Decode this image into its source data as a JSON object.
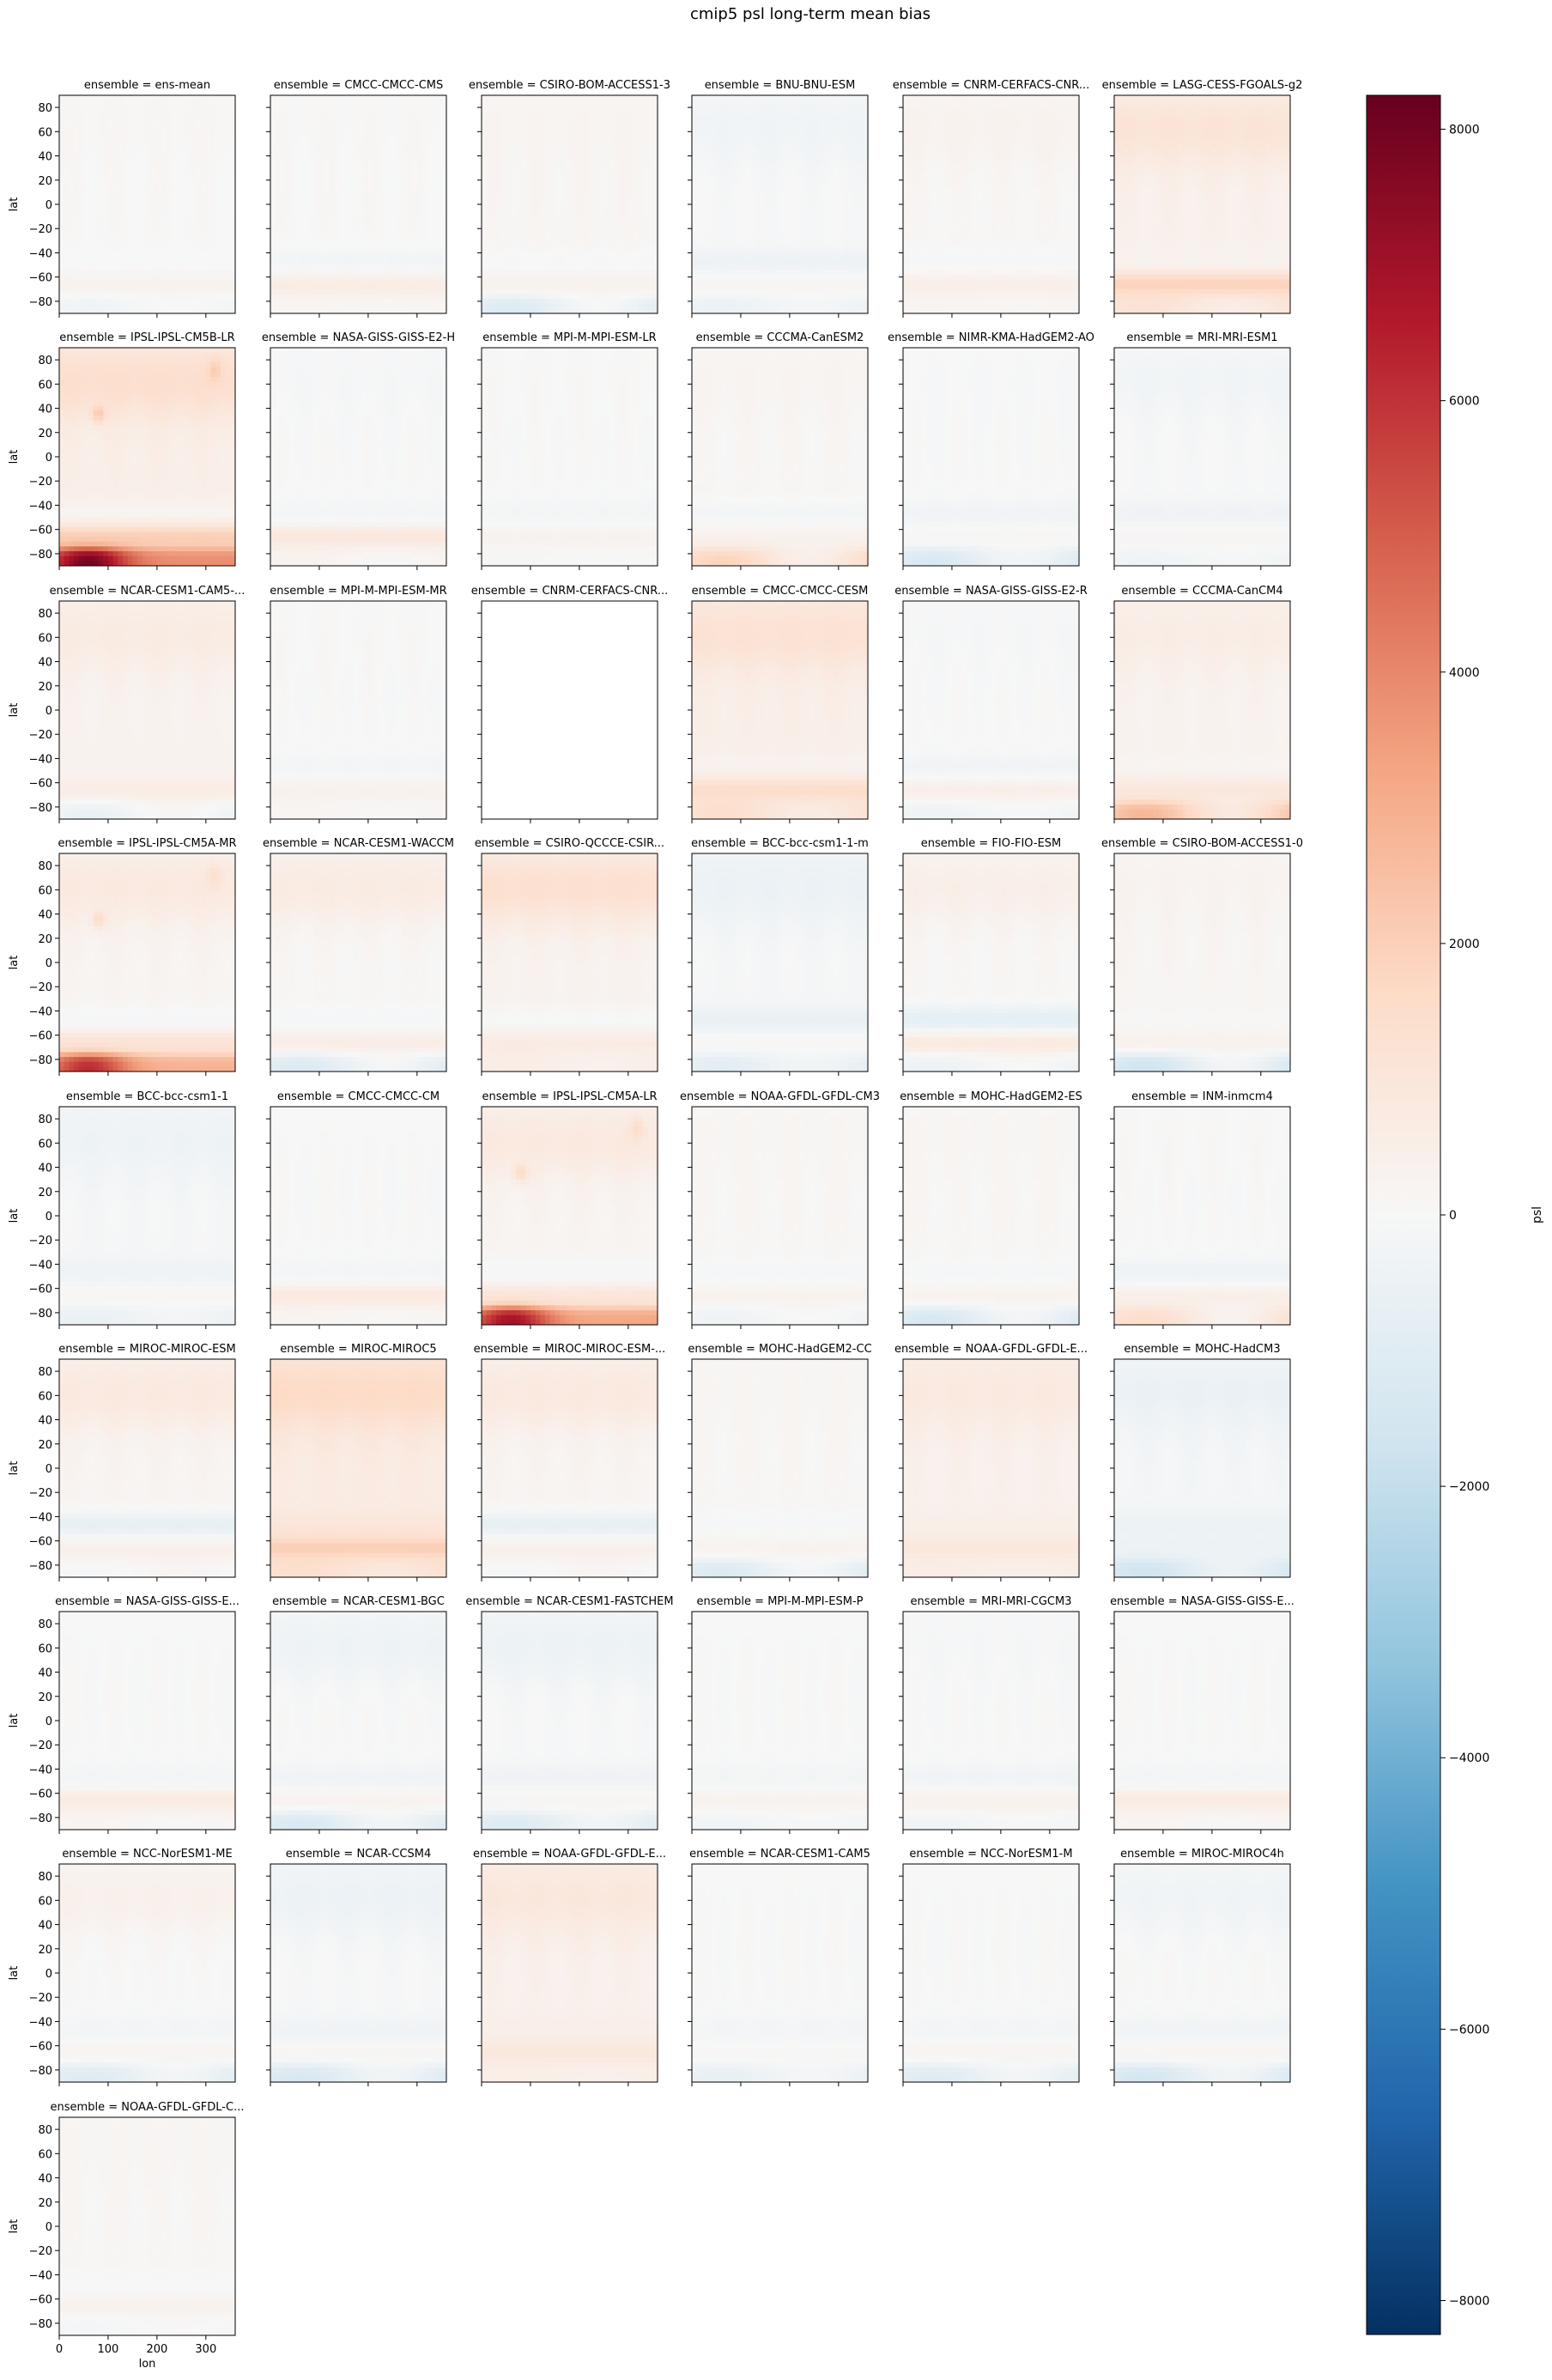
{
  "title": "cmip5 psl long-term mean bias",
  "colorbar": {
    "label": "psl",
    "ticks": [
      -8000,
      -6000,
      -4000,
      -2000,
      0,
      2000,
      4000,
      6000,
      8000
    ],
    "tick_labels": [
      "−8000",
      "−6000",
      "−4000",
      "−2000",
      "0",
      "2000",
      "4000",
      "6000",
      "8000"
    ],
    "range": [
      -8250,
      8250
    ],
    "cmap": "RdBu_r",
    "colors": [
      "#053061",
      "#2166ac",
      "#4393c3",
      "#92c5de",
      "#d1e5f0",
      "#f7f7f7",
      "#fddbc7",
      "#f4a582",
      "#d6604d",
      "#b2182b",
      "#67001f"
    ]
  },
  "chart_data": {
    "type": "heatmap",
    "layout": "facet grid, 6 columns, shared axes",
    "xlabel": "lon",
    "ylabel": "lat",
    "xticks": [
      0,
      100,
      200,
      300
    ],
    "xlim": [
      0,
      360
    ],
    "yticks": [
      80,
      60,
      40,
      20,
      0,
      -20,
      -40,
      -60,
      -80
    ],
    "ytick_labels": [
      "80",
      "60",
      "40",
      "20",
      "0",
      "−20",
      "−40",
      "−60",
      "−80"
    ],
    "ylim": [
      -90,
      90
    ],
    "panels": [
      {
        "title": "ensemble = ens-mean",
        "bias": {
          "base": 50,
          "north": 60,
          "mid": -80,
          "south": 250,
          "polar": -400
        }
      },
      {
        "title": "ensemble = CMCC-CMCC-CMS",
        "bias": {
          "base": 50,
          "north": 20,
          "mid": -300,
          "south": 600,
          "polar": 100
        }
      },
      {
        "title": "ensemble = CSIRO-BOM-ACCESS1-3",
        "bias": {
          "base": 150,
          "north": 50,
          "mid": -200,
          "south": 200,
          "polar": -1300
        }
      },
      {
        "title": "ensemble = BNU-BNU-ESM",
        "bias": {
          "base": -50,
          "north": -250,
          "mid": -400,
          "south": 200,
          "polar": -500
        }
      },
      {
        "title": "ensemble = CNRM-CERFACS-CNR...",
        "bias": {
          "base": 100,
          "north": 200,
          "mid": -200,
          "south": 400,
          "polar": 100
        }
      },
      {
        "title": "ensemble = LASG-CESS-FGOALS-g2",
        "bias": {
          "base": 400,
          "north": 700,
          "mid": -100,
          "south": 1500,
          "polar": 800
        }
      },
      {
        "title": "ensemble = IPSL-IPSL-CM5B-LR",
        "bias": {
          "base": 500,
          "north": 900,
          "mid": -300,
          "south": 1500,
          "polar": 7500
        }
      },
      {
        "title": "ensemble = NASA-GISS-GISS-E2-H",
        "bias": {
          "base": 0,
          "north": -100,
          "mid": -200,
          "south": 900,
          "polar": 300
        }
      },
      {
        "title": "ensemble = MPI-M-MPI-ESM-LR",
        "bias": {
          "base": 0,
          "north": 50,
          "mid": -200,
          "south": 300,
          "polar": 100
        }
      },
      {
        "title": "ensemble = CCCMA-CanESM2",
        "bias": {
          "base": 100,
          "north": 100,
          "mid": -300,
          "south": 300,
          "polar": 1800
        }
      },
      {
        "title": "ensemble = NIMR-KMA-HadGEM2-AO",
        "bias": {
          "base": 0,
          "north": -50,
          "mid": -300,
          "south": 100,
          "polar": -1300
        }
      },
      {
        "title": "ensemble = MRI-MRI-ESM1",
        "bias": {
          "base": -50,
          "north": -200,
          "mid": -300,
          "south": 200,
          "polar": -300
        }
      },
      {
        "title": "ensemble = NCAR-CESM1-CAM5-...",
        "bias": {
          "base": 300,
          "north": 400,
          "mid": 0,
          "south": 300,
          "polar": -900
        }
      },
      {
        "title": "ensemble = MPI-M-MPI-ESM-MR",
        "bias": {
          "base": 0,
          "north": 50,
          "mid": -200,
          "south": 400,
          "polar": 200
        }
      },
      {
        "title": "ensemble = CNRM-CERFACS-CNR...",
        "bias": null
      },
      {
        "title": "ensemble = CMCC-CMCC-CESM",
        "bias": {
          "base": 500,
          "north": 700,
          "mid": -200,
          "south": 1000,
          "polar": 900
        }
      },
      {
        "title": "ensemble = NASA-GISS-GISS-E2-R",
        "bias": {
          "base": 0,
          "north": -100,
          "mid": -300,
          "south": 500,
          "polar": -400
        }
      },
      {
        "title": "ensemble = CCCMA-CanCM4",
        "bias": {
          "base": 300,
          "north": 300,
          "mid": -100,
          "south": 600,
          "polar": 2500
        }
      },
      {
        "title": "ensemble = IPSL-IPSL-CM5A-MR",
        "bias": {
          "base": 200,
          "north": 600,
          "mid": -300,
          "south": 900,
          "polar": 6000
        }
      },
      {
        "title": "ensemble = NCAR-CESM1-WACCM",
        "bias": {
          "base": 100,
          "north": 600,
          "mid": -200,
          "south": 500,
          "polar": -1300
        }
      },
      {
        "title": "ensemble = CSIRO-QCCCE-CSIR...",
        "bias": {
          "base": 300,
          "north": 1000,
          "mid": -300,
          "south": 400,
          "polar": 300
        }
      },
      {
        "title": "ensemble = BCC-bcc-csm1-1-m",
        "bias": {
          "base": -100,
          "north": -400,
          "mid": -500,
          "south": 200,
          "polar": -800
        }
      },
      {
        "title": "ensemble = FIO-FIO-ESM",
        "bias": {
          "base": 100,
          "north": 400,
          "mid": -900,
          "south": 700,
          "polar": -600
        }
      },
      {
        "title": "ensemble = CSIRO-BOM-ACCESS1-0",
        "bias": {
          "base": 150,
          "north": 100,
          "mid": -100,
          "south": 200,
          "polar": -1800
        }
      },
      {
        "title": "ensemble = BCC-bcc-csm1-1",
        "bias": {
          "base": -100,
          "north": -300,
          "mid": -300,
          "south": 200,
          "polar": -500
        }
      },
      {
        "title": "ensemble = CMCC-CMCC-CM",
        "bias": {
          "base": 0,
          "north": 0,
          "mid": -200,
          "south": 800,
          "polar": 200
        }
      },
      {
        "title": "ensemble = IPSL-IPSL-CM5A-LR",
        "bias": {
          "base": 200,
          "north": 600,
          "mid": -300,
          "south": 800,
          "polar": 6800
        }
      },
      {
        "title": "ensemble = NOAA-GFDL-GFDL-CM3",
        "bias": {
          "base": 100,
          "north": 50,
          "mid": -200,
          "south": 200,
          "polar": -500
        }
      },
      {
        "title": "ensemble = MOHC-HadGEM2-ES",
        "bias": {
          "base": 100,
          "north": 50,
          "mid": -200,
          "south": 200,
          "polar": -1500
        }
      },
      {
        "title": "ensemble = INM-inmcm4",
        "bias": {
          "base": 0,
          "north": 50,
          "mid": -400,
          "south": 500,
          "polar": 1500
        }
      },
      {
        "title": "ensemble = MIROC-MIROC-ESM",
        "bias": {
          "base": 200,
          "north": 600,
          "mid": -900,
          "south": 300,
          "polar": -300
        }
      },
      {
        "title": "ensemble = MIROC-MIROC5",
        "bias": {
          "base": 700,
          "north": 900,
          "mid": 300,
          "south": 1300,
          "polar": 700
        }
      },
      {
        "title": "ensemble = MIROC-MIROC-ESM-...",
        "bias": {
          "base": 200,
          "north": 600,
          "mid": -900,
          "south": 300,
          "polar": -300
        }
      },
      {
        "title": "ensemble = MOHC-HadGEM2-CC",
        "bias": {
          "base": 100,
          "north": 50,
          "mid": -200,
          "south": 200,
          "polar": -1300
        }
      },
      {
        "title": "ensemble = NOAA-GFDL-GFDL-E...",
        "bias": {
          "base": 400,
          "north": 400,
          "mid": 100,
          "south": 500,
          "polar": 200
        }
      },
      {
        "title": "ensemble = MOHC-HadCM3",
        "bias": {
          "base": -150,
          "north": -400,
          "mid": -300,
          "south": -300,
          "polar": -1500
        }
      },
      {
        "title": "ensemble = NASA-GISS-GISS-E...",
        "bias": {
          "base": 0,
          "north": 0,
          "mid": -200,
          "south": 700,
          "polar": 200
        }
      },
      {
        "title": "ensemble = NCAR-CESM1-BGC",
        "bias": {
          "base": 0,
          "north": -400,
          "mid": -300,
          "south": 300,
          "polar": -1300
        }
      },
      {
        "title": "ensemble = NCAR-CESM1-FASTCHEM",
        "bias": {
          "base": -50,
          "north": -400,
          "mid": -300,
          "south": 200,
          "polar": -1100
        }
      },
      {
        "title": "ensemble = MPI-M-MPI-ESM-P",
        "bias": {
          "base": 0,
          "north": 0,
          "mid": -200,
          "south": 300,
          "polar": -300
        }
      },
      {
        "title": "ensemble = MRI-MRI-CGCM3",
        "bias": {
          "base": 0,
          "north": -100,
          "mid": -300,
          "south": 400,
          "polar": -300
        }
      },
      {
        "title": "ensemble = NASA-GISS-GISS-E...",
        "bias": {
          "base": 0,
          "north": 0,
          "mid": -200,
          "south": 700,
          "polar": 200
        }
      },
      {
        "title": "ensemble = NCC-NorESM1-ME",
        "bias": {
          "base": 0,
          "north": 400,
          "mid": -200,
          "south": 200,
          "polar": -1100
        }
      },
      {
        "title": "ensemble = NCAR-CCSM4",
        "bias": {
          "base": -50,
          "north": -400,
          "mid": -300,
          "south": 200,
          "polar": -1300
        }
      },
      {
        "title": "ensemble = NOAA-GFDL-GFDL-E...",
        "bias": {
          "base": 400,
          "north": 500,
          "mid": 100,
          "south": 500,
          "polar": 100
        }
      },
      {
        "title": "ensemble = NCAR-CESM1-CAM5",
        "bias": {
          "base": 0,
          "north": 0,
          "mid": -200,
          "south": 100,
          "polar": -700
        }
      },
      {
        "title": "ensemble = NCC-NorESM1-M",
        "bias": {
          "base": 0,
          "north": 0,
          "mid": -200,
          "south": 200,
          "polar": -1100
        }
      },
      {
        "title": "ensemble = MIROC-MIROC4h",
        "bias": {
          "base": 0,
          "north": -300,
          "mid": -300,
          "south": 200,
          "polar": -1500
        }
      },
      {
        "title": "ensemble = NOAA-GFDL-GFDL-C...",
        "bias": {
          "base": 100,
          "north": 50,
          "mid": -100,
          "south": 200,
          "polar": -300
        }
      }
    ]
  }
}
